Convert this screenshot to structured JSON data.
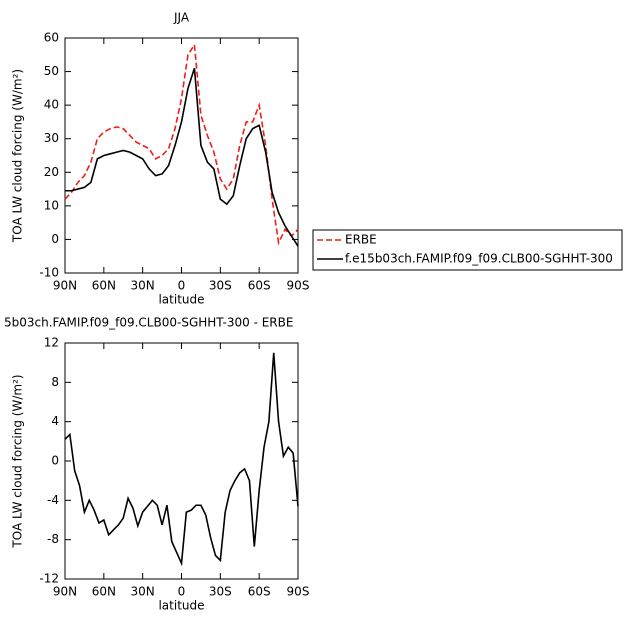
{
  "chart_data": [
    {
      "type": "line",
      "title": "JJA",
      "xlabel": "latitude",
      "ylabel": "TOA LW cloud forcing (W/m²)",
      "x": [
        90,
        85,
        80,
        75,
        70,
        65,
        60,
        55,
        50,
        45,
        40,
        35,
        30,
        25,
        20,
        15,
        10,
        5,
        0,
        -5,
        -10,
        -15,
        -20,
        -25,
        -30,
        -35,
        -40,
        -45,
        -50,
        -55,
        -60,
        -65,
        -70,
        -75,
        -80,
        -85,
        -90
      ],
      "series": [
        {
          "name": "ERBE",
          "color": "#e8221b",
          "linestyle": "dashed",
          "values": [
            12,
            14,
            17,
            19,
            23,
            30,
            32,
            33,
            33.5,
            33,
            31,
            29,
            28,
            27,
            24,
            25,
            27,
            33,
            42,
            55,
            58,
            37,
            31,
            26,
            18,
            15,
            18,
            28,
            35,
            35,
            40,
            28,
            12,
            -1,
            3,
            1,
            3
          ]
        },
        {
          "name": "f.e15b03ch.FAMIP.f09_f09.CLB00-SGHHT-300",
          "color": "#000000",
          "linestyle": "solid",
          "values": [
            14.5,
            14.5,
            15,
            15.5,
            17,
            24,
            25,
            25.5,
            26,
            26.5,
            26,
            25,
            24,
            21,
            19,
            19.5,
            22,
            28,
            35,
            45,
            51,
            28,
            23,
            21,
            12,
            10.5,
            13,
            22,
            30,
            33,
            34,
            26,
            14,
            8,
            4,
            1,
            -2
          ]
        }
      ],
      "xlim": [
        90,
        -90
      ],
      "xticks": [
        {
          "value": 90,
          "label": "90N"
        },
        {
          "value": 60,
          "label": "60N"
        },
        {
          "value": 30,
          "label": "30N"
        },
        0,
        {
          "value": -30,
          "label": "30S"
        },
        {
          "value": -60,
          "label": "60S"
        },
        {
          "value": -90,
          "label": "90S"
        }
      ],
      "ylim": [
        -10,
        60
      ],
      "yticks": [
        -10,
        0,
        10,
        20,
        30,
        40,
        50,
        60
      ],
      "legend": "right"
    },
    {
      "type": "line",
      "title": "5b03ch.FAMIP.f09_f09.CLB00-SGHHT-300 - ERBE",
      "xlabel": "latitude",
      "ylabel": "TOA LW cloud forcing (W/m²)",
      "x": [
        90,
        86.25,
        82.5,
        78.75,
        75,
        71.25,
        67.5,
        63.75,
        60,
        56.25,
        52.5,
        48.75,
        45,
        41.25,
        37.5,
        33.75,
        30,
        26.25,
        22.5,
        18.75,
        15,
        11.25,
        7.5,
        3.75,
        0,
        -3.75,
        -7.5,
        -11.25,
        -15,
        -18.75,
        -22.5,
        -26.25,
        -30,
        -33.75,
        -37.5,
        -41.25,
        -45,
        -48.75,
        -52.5,
        -56.25,
        -60,
        -63.75,
        -67.5,
        -71.25,
        -75,
        -78.75,
        -82.5,
        -86.25,
        -90
      ],
      "series": [
        {
          "color": "#000000",
          "linestyle": "solid",
          "values": [
            2.2,
            2.7,
            -1,
            -2.5,
            -5.2,
            -4,
            -5,
            -6.3,
            -6,
            -7.5,
            -7,
            -6.5,
            -5.8,
            -3.8,
            -4.8,
            -6.6,
            -5.2,
            -4.6,
            -4,
            -4.5,
            -6.5,
            -4.5,
            -8.2,
            -9.3,
            -10.4,
            -5.2,
            -5,
            -4.5,
            -4.5,
            -5.5,
            -7.8,
            -9.6,
            -10.1,
            -5.2,
            -3,
            -2,
            -1.2,
            -0.8,
            -2,
            -8.7,
            -3,
            1.4,
            4,
            11,
            4,
            0.5,
            1.4,
            0.8,
            -4.6
          ]
        }
      ],
      "xlim": [
        90,
        -90
      ],
      "xticks": [
        {
          "value": 90,
          "label": "90N"
        },
        {
          "value": 60,
          "label": "60N"
        },
        {
          "value": 30,
          "label": "30N"
        },
        0,
        {
          "value": -30,
          "label": "30S"
        },
        {
          "value": -60,
          "label": "60S"
        },
        {
          "value": -90,
          "label": "90S"
        }
      ],
      "ylim": [
        -12,
        12
      ],
      "yticks": [
        -12,
        -8,
        -4,
        0,
        4,
        8,
        12
      ]
    }
  ]
}
